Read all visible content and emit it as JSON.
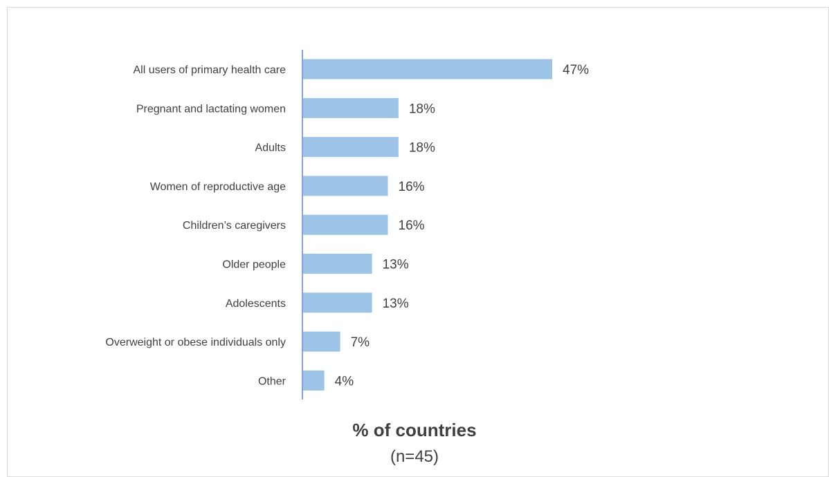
{
  "chart_data": {
    "type": "bar",
    "orientation": "horizontal",
    "categories": [
      "All users of primary health care",
      "Pregnant and lactating women",
      "Adults",
      "Women of reproductive age",
      "Children’s caregivers",
      "Older people",
      "Adolescents",
      "Overweight or obese individuals only",
      "Other"
    ],
    "values": [
      47,
      18,
      18,
      16,
      16,
      13,
      13,
      7,
      4
    ],
    "data_labels": [
      "47%",
      "18%",
      "18%",
      "16%",
      "16%",
      "13%",
      "13%",
      "7%",
      "4%"
    ],
    "xlabel": "% of countries",
    "xlabel_sub": "(n=45)",
    "xlim": [
      0,
      50
    ],
    "grid": false,
    "legend": "none",
    "bar_color": "#9dc3e6",
    "axis_color": "#4472c4"
  }
}
